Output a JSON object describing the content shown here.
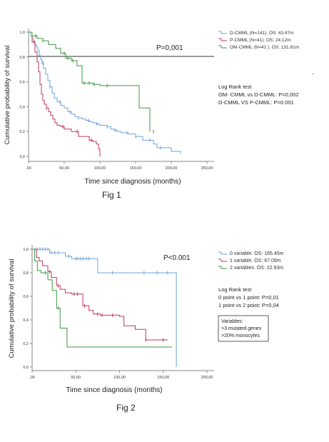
{
  "chart_data": [
    {
      "type": "line",
      "caption": "Fig 1",
      "xlabel": "Time since diagnosis (months)",
      "ylabel": "Cumulative probability of survival",
      "xlim": [
        0,
        250
      ],
      "ylim": [
        0,
        1
      ],
      "x_ticks": [
        0,
        50,
        100,
        150,
        200,
        250
      ],
      "x_tick_labels": [
        ",00",
        "50,00",
        "100,00",
        "150,00",
        "200,00",
        "250,00"
      ],
      "y_ticks": [
        0,
        0.2,
        0.4,
        0.6,
        0.8,
        1.0
      ],
      "y_tick_labels": [
        "0,0",
        "0,2",
        "0,4",
        "0,6",
        "0,8",
        "1,0"
      ],
      "grid": "horizontal line at 0.8",
      "p_value": "P=0,001",
      "legend_position": "top-right",
      "annotation_lines": [
        "Log Rank test",
        "OM- CMML vs D-CMML: P=0,002",
        "D-CMML VS P-CMML: P=0.001"
      ],
      "series": [
        {
          "name": "D-CMML (N=141). OS: 43.47m",
          "color": "#6fa3d8",
          "x": [
            0,
            3,
            5,
            7,
            9,
            11,
            13,
            15,
            17,
            19,
            21,
            24,
            27,
            30,
            33,
            36,
            40,
            45,
            50,
            55,
            60,
            65,
            70,
            75,
            80,
            85,
            90,
            95,
            100,
            110,
            115,
            120,
            125,
            130,
            140,
            150,
            160,
            175,
            180,
            200,
            213
          ],
          "y": [
            1.0,
            0.97,
            0.95,
            0.92,
            0.9,
            0.88,
            0.85,
            0.81,
            0.78,
            0.75,
            0.71,
            0.66,
            0.61,
            0.56,
            0.51,
            0.47,
            0.44,
            0.41,
            0.39,
            0.36,
            0.34,
            0.32,
            0.31,
            0.3,
            0.29,
            0.28,
            0.27,
            0.26,
            0.25,
            0.24,
            0.22,
            0.21,
            0.2,
            0.19,
            0.18,
            0.16,
            0.13,
            0.1,
            0.07,
            0.04,
            0.02
          ],
          "censor_x": [
            20,
            30,
            44,
            58,
            70,
            84,
            96,
            110,
            122,
            138,
            150,
            170,
            185
          ]
        },
        {
          "name": "P-CMML (N=41). OS: 24.12m",
          "color": "#c0395b",
          "x": [
            0,
            5,
            9,
            12,
            14,
            16,
            18,
            20,
            22,
            25,
            28,
            31,
            34,
            37,
            40,
            45,
            50,
            60,
            70,
            80,
            85,
            90,
            95,
            98,
            100
          ],
          "y": [
            1.0,
            0.92,
            0.84,
            0.76,
            0.68,
            0.58,
            0.5,
            0.45,
            0.42,
            0.39,
            0.36,
            0.33,
            0.3,
            0.27,
            0.25,
            0.24,
            0.22,
            0.2,
            0.16,
            0.16,
            0.13,
            0.12,
            0.1,
            0.06,
            0.0
          ],
          "censor_x": [
            8,
            25,
            48,
            68,
            88
          ]
        },
        {
          "name": "OM-CMML (N=41 ). OS: 131.81m",
          "color": "#3b9b3e",
          "x": [
            0,
            5,
            12,
            20,
            28,
            38,
            45,
            52,
            60,
            68,
            75,
            90,
            100,
            112,
            132,
            155,
            170
          ],
          "y": [
            1.0,
            0.97,
            0.95,
            0.93,
            0.9,
            0.87,
            0.83,
            0.79,
            0.77,
            0.73,
            0.59,
            0.58,
            0.57,
            0.57,
            0.57,
            0.39,
            0.2
          ],
          "censor_x": [
            10,
            20,
            50,
            55,
            62,
            78,
            85,
            92,
            110,
            175
          ]
        }
      ]
    },
    {
      "type": "line",
      "caption": "Fig 2",
      "xlabel": "Time since diagnosis (months)",
      "ylabel": "Cumulative probability of survival",
      "xlim": [
        0,
        200
      ],
      "ylim": [
        0,
        1
      ],
      "x_ticks": [
        0,
        50,
        100,
        150,
        200
      ],
      "x_tick_labels": [
        ",00",
        "50,00",
        "100,00",
        "150,00",
        "200,00"
      ],
      "y_ticks": [
        0,
        0.2,
        0.4,
        0.6,
        0.8,
        1.0
      ],
      "y_tick_labels": [
        "0,0",
        "0,2",
        "0,4",
        "0,6",
        "0,8",
        "1,0"
      ],
      "grid": "none",
      "p_value": "P<0.001",
      "legend_position": "top-right",
      "annotation_lines": [
        "Log Rank test",
        "0 point vs 1 point: P=0,01",
        "1 point vs 2 point: P=0,04"
      ],
      "boxed_lines": [
        "Variables:",
        ">3 mutated genes",
        ">20% monocytes"
      ],
      "series": [
        {
          "name": "0 variable. OS: 165.45m",
          "color": "#6fa3d8",
          "x": [
            0,
            20,
            38,
            45,
            68,
            75,
            100,
            130,
            160,
            165
          ],
          "y": [
            1.0,
            0.97,
            0.94,
            0.92,
            0.92,
            0.8,
            0.8,
            0.8,
            0.8,
            0.0
          ],
          "censor_x": [
            3,
            6,
            9,
            12,
            15,
            18,
            22,
            26,
            30,
            42,
            50,
            52,
            55,
            58,
            62,
            65,
            92,
            128,
            143,
            155
          ]
        },
        {
          "name": "1 variable. OS: 67.09m",
          "color": "#c0395b",
          "x": [
            0,
            5,
            8,
            12,
            18,
            22,
            28,
            32,
            38,
            45,
            52,
            58,
            65,
            70,
            78,
            100,
            105,
            118,
            130,
            150,
            155
          ],
          "y": [
            1.0,
            0.93,
            0.9,
            0.86,
            0.81,
            0.76,
            0.69,
            0.66,
            0.63,
            0.62,
            0.62,
            0.52,
            0.48,
            0.45,
            0.44,
            0.43,
            0.35,
            0.32,
            0.23,
            0.23,
            0.23
          ],
          "censor_x": [
            20,
            30,
            48,
            52,
            60,
            75,
            80,
            92,
            130,
            150
          ]
        },
        {
          "name": "2 variables. OS: 22.93m",
          "color": "#3b9b3e",
          "x": [
            0,
            3,
            6,
            10,
            18,
            23,
            28,
            32,
            40,
            60,
            100,
            160
          ],
          "y": [
            1.0,
            0.9,
            0.82,
            0.8,
            0.74,
            0.65,
            0.5,
            0.33,
            0.17,
            0.17,
            0.17,
            0.17
          ],
          "censor_x": [
            15,
            30
          ]
        }
      ]
    }
  ]
}
